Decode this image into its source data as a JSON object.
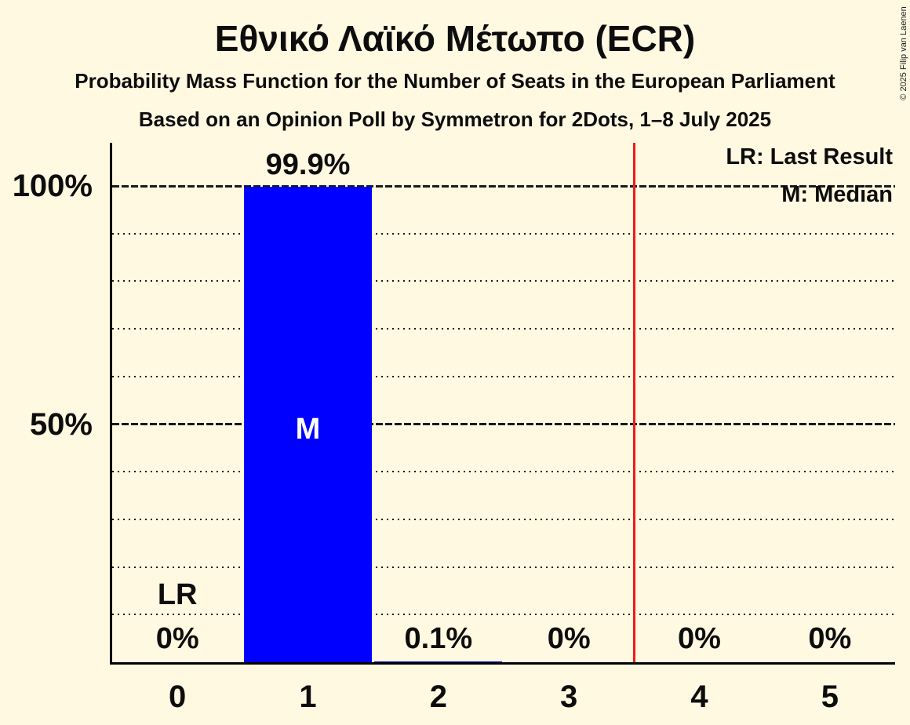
{
  "page": {
    "background_color": "#fff9e1",
    "copyright": "© 2025 Filip van Laenen"
  },
  "header": {
    "title": "Εθνικό Λαϊκό Μέτωπο (ECR)",
    "subtitle": "Probability Mass Function for the Number of Seats in the European Parliament",
    "poll_line": "Based on an Opinion Poll by Symmetron for 2Dots, 1–8 July 2025"
  },
  "legend": {
    "last_result": "LR: Last Result",
    "median": "M: Median"
  },
  "chart_data": {
    "type": "bar",
    "title": "Εθνικό Λαϊκό Μέτωπο (ECR)",
    "xlabel": "",
    "ylabel": "",
    "categories": [
      "0",
      "1",
      "2",
      "3",
      "4",
      "5"
    ],
    "values": [
      0,
      99.9,
      0.1,
      0,
      0,
      0
    ],
    "value_labels": [
      "0%",
      "99.9%",
      "0.1%",
      "0%",
      "0%",
      "0%"
    ],
    "ylim": [
      0,
      100
    ],
    "y_ticks": [
      {
        "label": "100%",
        "value": 100
      },
      {
        "label": "50%",
        "value": 50
      }
    ],
    "grid": {
      "minor_step": 10,
      "major_values": [
        50,
        100
      ],
      "minor_style": "dotted",
      "major_style": "dashed"
    },
    "legend_position": "top-right",
    "annotations": {
      "last_result": {
        "category_index": 0,
        "label": "LR"
      },
      "median": {
        "category_index": 1,
        "label": "M"
      },
      "threshold_line_x": 3.5
    },
    "colors": {
      "background": "#fff9e1",
      "bar": "#0000ff",
      "threshold_line": "#ee1c19",
      "text": "#0d0d0d",
      "median_text": "#ffffff"
    }
  }
}
